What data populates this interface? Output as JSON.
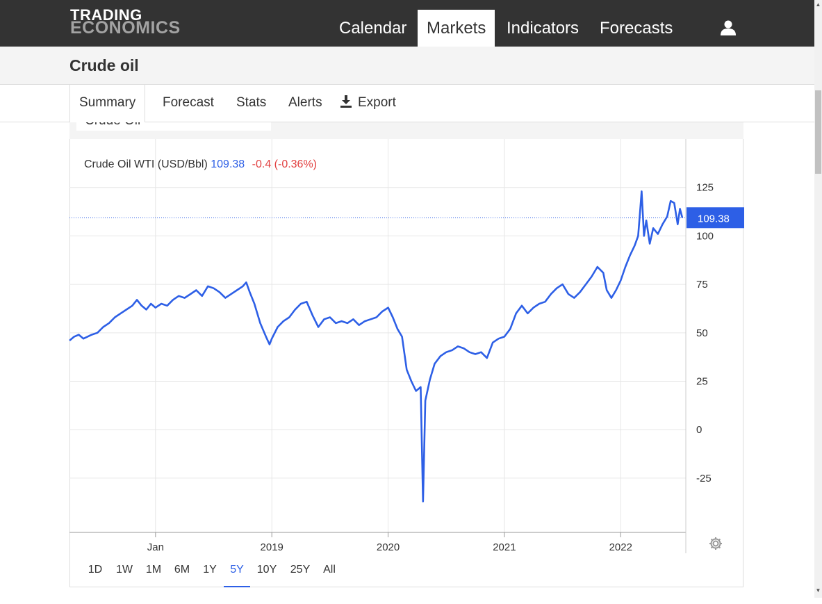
{
  "logo": {
    "line1": "TRADING",
    "line2": "ECONOMICS"
  },
  "nav": {
    "items": [
      {
        "label": "Calendar",
        "active": false
      },
      {
        "label": "Markets",
        "active": true
      },
      {
        "label": "Indicators",
        "active": false
      },
      {
        "label": "Forecasts",
        "active": false
      }
    ],
    "user_icon": "user-icon"
  },
  "page": {
    "title": "Crude oil"
  },
  "tabs": [
    {
      "label": "Summary",
      "active": true
    },
    {
      "label": "Forecast",
      "active": false
    },
    {
      "label": "Stats",
      "active": false
    },
    {
      "label": "Alerts",
      "active": false
    },
    {
      "label": "Export",
      "active": false,
      "icon": "download-icon"
    }
  ],
  "toolbar": {
    "symbol_value": "Crude Oil"
  },
  "legend": {
    "series": "Crude Oil WTI (USD/Bbl)",
    "value": "109.38",
    "change": "-0.4 (-0.36%)"
  },
  "ranges": [
    {
      "label": "1D",
      "active": false
    },
    {
      "label": "1W",
      "active": false
    },
    {
      "label": "1M",
      "active": false
    },
    {
      "label": "6M",
      "active": false
    },
    {
      "label": "1Y",
      "active": false
    },
    {
      "label": "5Y",
      "active": true
    },
    {
      "label": "10Y",
      "active": false
    },
    {
      "label": "25Y",
      "active": false
    },
    {
      "label": "All",
      "active": false
    }
  ],
  "colors": {
    "line": "#2d5fe6",
    "current_badge": "#2d5fe6",
    "change_negative": "#e24040",
    "topbar": "#333333"
  },
  "chart_data": {
    "type": "line",
    "title": "",
    "xlabel": "",
    "ylabel": "",
    "series_name": "Crude Oil WTI (USD/Bbl)",
    "y_ticks": [
      125,
      100,
      75,
      50,
      25,
      0,
      -25
    ],
    "ylim": [
      -53,
      150
    ],
    "x_tick_labels": [
      {
        "label": "Jan",
        "x": 2018.0
      },
      {
        "label": "2019",
        "x": 2019.0
      },
      {
        "label": "2020",
        "x": 2020.0
      },
      {
        "label": "2021",
        "x": 2021.0
      },
      {
        "label": "2022",
        "x": 2022.0
      }
    ],
    "xlim": [
      2017.26,
      2022.56
    ],
    "current_value": 109.38,
    "grid": true,
    "points": [
      [
        2017.26,
        46
      ],
      [
        2017.3,
        48
      ],
      [
        2017.34,
        49
      ],
      [
        2017.38,
        47
      ],
      [
        2017.45,
        49
      ],
      [
        2017.5,
        50
      ],
      [
        2017.55,
        53
      ],
      [
        2017.6,
        55
      ],
      [
        2017.65,
        58
      ],
      [
        2017.7,
        60
      ],
      [
        2017.75,
        62
      ],
      [
        2017.8,
        64
      ],
      [
        2017.84,
        67
      ],
      [
        2017.88,
        64
      ],
      [
        2017.92,
        62
      ],
      [
        2017.96,
        65
      ],
      [
        2018.0,
        63
      ],
      [
        2018.05,
        65
      ],
      [
        2018.1,
        64
      ],
      [
        2018.15,
        67
      ],
      [
        2018.2,
        69
      ],
      [
        2018.25,
        68
      ],
      [
        2018.3,
        70
      ],
      [
        2018.35,
        72
      ],
      [
        2018.4,
        69
      ],
      [
        2018.45,
        74
      ],
      [
        2018.5,
        73
      ],
      [
        2018.55,
        71
      ],
      [
        2018.6,
        68
      ],
      [
        2018.65,
        70
      ],
      [
        2018.7,
        72
      ],
      [
        2018.75,
        74
      ],
      [
        2018.78,
        76
      ],
      [
        2018.81,
        71
      ],
      [
        2018.85,
        65
      ],
      [
        2018.9,
        55
      ],
      [
        2018.95,
        48
      ],
      [
        2018.98,
        44
      ],
      [
        2019.0,
        47
      ],
      [
        2019.05,
        53
      ],
      [
        2019.1,
        56
      ],
      [
        2019.15,
        58
      ],
      [
        2019.2,
        62
      ],
      [
        2019.25,
        65
      ],
      [
        2019.3,
        66
      ],
      [
        2019.35,
        59
      ],
      [
        2019.4,
        53
      ],
      [
        2019.45,
        57
      ],
      [
        2019.5,
        58
      ],
      [
        2019.55,
        55
      ],
      [
        2019.6,
        56
      ],
      [
        2019.65,
        55
      ],
      [
        2019.7,
        57
      ],
      [
        2019.75,
        54
      ],
      [
        2019.8,
        56
      ],
      [
        2019.85,
        57
      ],
      [
        2019.9,
        58
      ],
      [
        2019.95,
        61
      ],
      [
        2020.0,
        63
      ],
      [
        2020.04,
        58
      ],
      [
        2020.08,
        52
      ],
      [
        2020.12,
        48
      ],
      [
        2020.16,
        31
      ],
      [
        2020.2,
        25
      ],
      [
        2020.24,
        20
      ],
      [
        2020.28,
        22
      ],
      [
        2020.3,
        -37
      ],
      [
        2020.32,
        15
      ],
      [
        2020.36,
        26
      ],
      [
        2020.4,
        34
      ],
      [
        2020.45,
        38
      ],
      [
        2020.5,
        40
      ],
      [
        2020.55,
        41
      ],
      [
        2020.6,
        43
      ],
      [
        2020.65,
        42
      ],
      [
        2020.7,
        40
      ],
      [
        2020.75,
        39
      ],
      [
        2020.8,
        40
      ],
      [
        2020.85,
        37
      ],
      [
        2020.9,
        45
      ],
      [
        2020.95,
        47
      ],
      [
        2021.0,
        48
      ],
      [
        2021.05,
        52
      ],
      [
        2021.1,
        60
      ],
      [
        2021.15,
        64
      ],
      [
        2021.2,
        60
      ],
      [
        2021.25,
        63
      ],
      [
        2021.3,
        65
      ],
      [
        2021.35,
        66
      ],
      [
        2021.4,
        70
      ],
      [
        2021.45,
        73
      ],
      [
        2021.5,
        75
      ],
      [
        2021.55,
        70
      ],
      [
        2021.6,
        68
      ],
      [
        2021.65,
        71
      ],
      [
        2021.7,
        75
      ],
      [
        2021.75,
        79
      ],
      [
        2021.8,
        84
      ],
      [
        2021.85,
        81
      ],
      [
        2021.88,
        72
      ],
      [
        2021.92,
        68
      ],
      [
        2021.96,
        72
      ],
      [
        2022.0,
        77
      ],
      [
        2022.04,
        84
      ],
      [
        2022.08,
        90
      ],
      [
        2022.12,
        95
      ],
      [
        2022.15,
        100
      ],
      [
        2022.17,
        115
      ],
      [
        2022.18,
        123
      ],
      [
        2022.2,
        100
      ],
      [
        2022.22,
        108
      ],
      [
        2022.25,
        96
      ],
      [
        2022.28,
        104
      ],
      [
        2022.32,
        101
      ],
      [
        2022.36,
        106
      ],
      [
        2022.4,
        110
      ],
      [
        2022.43,
        118
      ],
      [
        2022.46,
        117
      ],
      [
        2022.49,
        106
      ],
      [
        2022.51,
        114
      ],
      [
        2022.53,
        109.38
      ]
    ]
  }
}
